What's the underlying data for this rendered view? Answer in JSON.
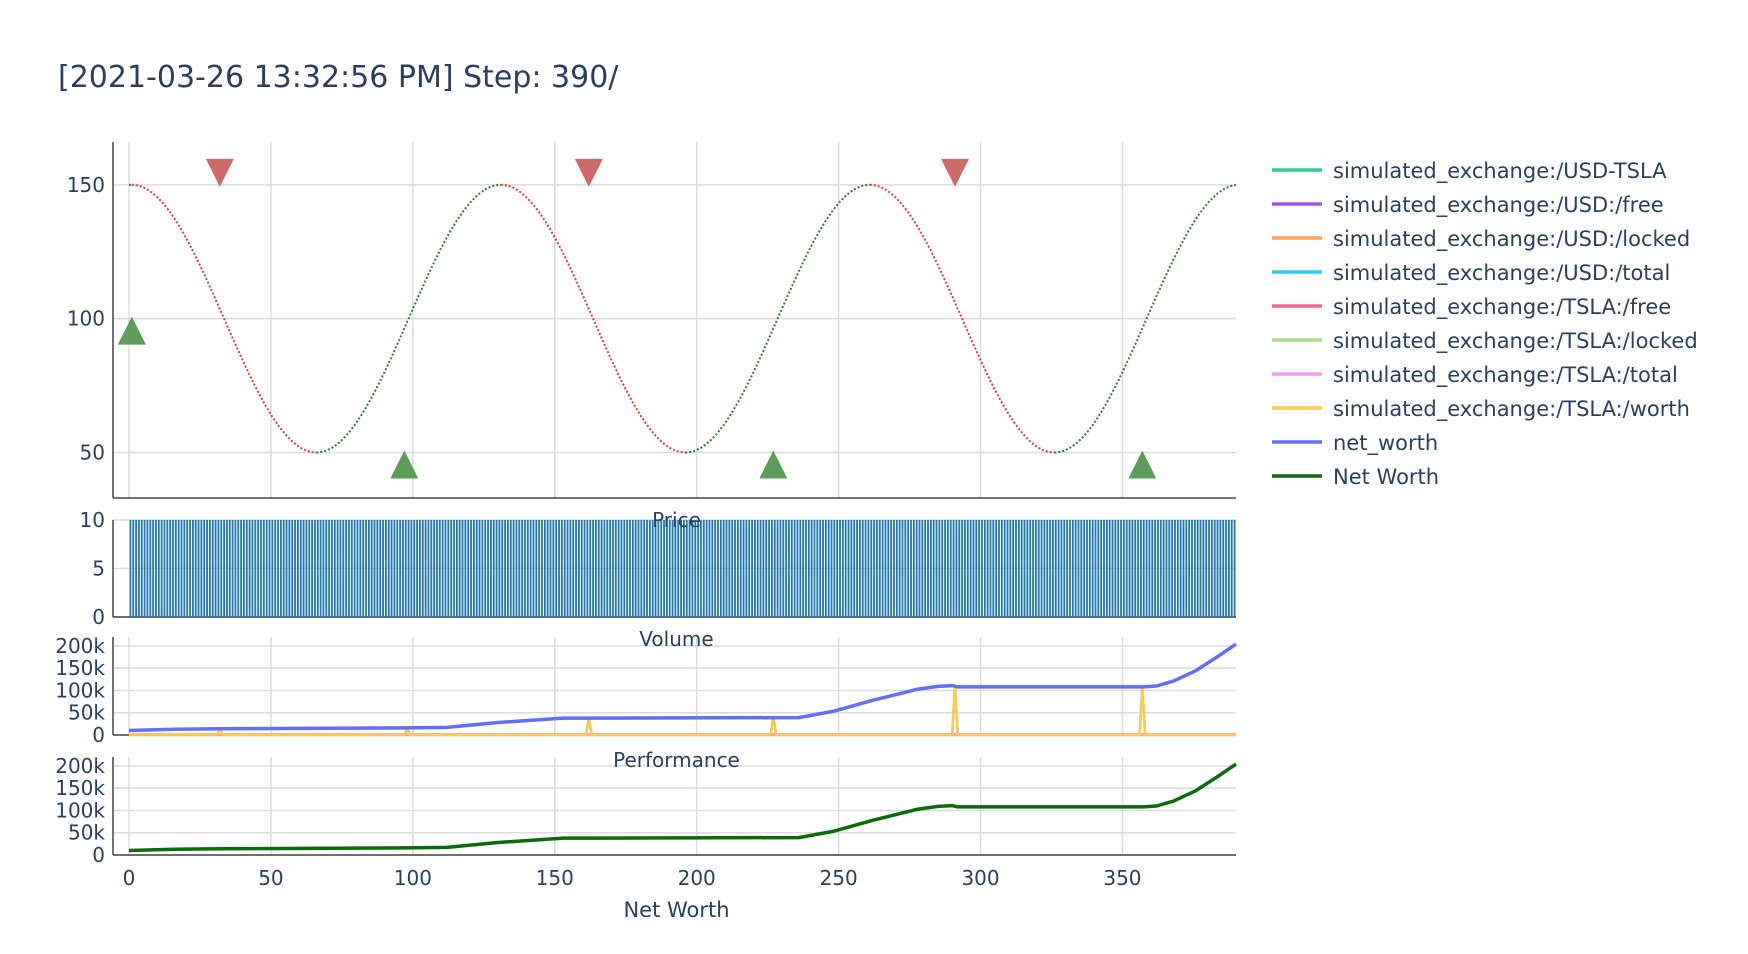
{
  "title": "[2021-03-26 13:32:56 PM] Step: 390/",
  "chart_data": [
    {
      "type": "line",
      "panel": "price",
      "title": "",
      "description": "Price as a sine wave; dotted segments colored green when rising and red when falling",
      "x_range": [
        0,
        390
      ],
      "ylim": [
        33,
        166
      ],
      "y_ticks": [
        50,
        100,
        150
      ],
      "sine": {
        "center": 100,
        "amplitude": 50,
        "period": 130,
        "phase_step": 0,
        "sample_step": 1
      },
      "colors": {
        "rising": "#2e7d32",
        "falling": "#e53935"
      },
      "buy_markers": {
        "x": [
          1,
          97,
          227,
          357
        ],
        "y": [
          100,
          50,
          50,
          50
        ],
        "color": "#5d9d5a",
        "symbol": "triangle-up"
      },
      "sell_markers": {
        "x": [
          32,
          162,
          291
        ],
        "y": [
          150,
          150,
          150
        ],
        "color": "#cf6a6a",
        "symbol": "triangle-down"
      }
    },
    {
      "type": "bar",
      "panel": "volume",
      "title": "Price",
      "x_range": [
        0,
        390
      ],
      "ylim": [
        0,
        10
      ],
      "y_ticks": [
        0,
        5,
        10
      ],
      "bar_value": 10,
      "bar_count": 390,
      "color": "#1f77b4"
    },
    {
      "type": "line",
      "panel": "portfolio",
      "title": "Volume",
      "ylim": [
        0,
        220000
      ],
      "y_ticks": [
        0,
        50000,
        100000,
        150000,
        200000
      ],
      "y_tick_labels": [
        "0",
        "50k",
        "100k",
        "150k",
        "200k"
      ],
      "series": [
        {
          "name": "simulated_exchange:/USD-TSLA",
          "color": "#2ecc9a",
          "x": [],
          "y": []
        },
        {
          "name": "simulated_exchange:/USD:/free",
          "color": "#9b5de5",
          "x": [],
          "y": []
        },
        {
          "name": "simulated_exchange:/USD:/locked",
          "color": "#ff9f5a",
          "x": [
            0,
            390
          ],
          "y": [
            0,
            0
          ]
        },
        {
          "name": "simulated_exchange:/USD:/total",
          "color": "#22cfe6",
          "x": [
            0,
            31,
            32,
            33,
            97,
            98,
            99,
            161,
            162,
            163,
            226,
            227,
            228,
            290,
            291,
            292,
            356,
            357,
            358,
            390
          ],
          "y": [
            1500,
            1500,
            14000,
            500,
            500,
            14000,
            500,
            500,
            38000,
            500,
            500,
            40000,
            500,
            500,
            110000,
            500,
            500,
            105000,
            500,
            500
          ]
        },
        {
          "name": "simulated_exchange:/TSLA:/free",
          "color": "#f06b8a",
          "x": [],
          "y": []
        },
        {
          "name": "simulated_exchange:/TSLA:/locked",
          "color": "#a8e08a",
          "x": [],
          "y": []
        },
        {
          "name": "simulated_exchange:/TSLA:/total",
          "color": "#f49cf2",
          "x": [
            0,
            390
          ],
          "y": [
            1500,
            1500
          ]
        },
        {
          "name": "simulated_exchange:/TSLA:/worth",
          "color": "#ffc94a",
          "x": [
            0,
            31,
            32,
            33,
            97,
            98,
            99,
            161,
            162,
            163,
            226,
            227,
            228,
            290,
            291,
            292,
            356,
            357,
            358,
            390
          ],
          "y": [
            1000,
            1000,
            14000,
            500,
            500,
            14000,
            500,
            500,
            38000,
            500,
            500,
            40000,
            500,
            500,
            110000,
            500,
            500,
            105000,
            500,
            500
          ]
        },
        {
          "name": "net_worth",
          "color": "#636efa",
          "x": [
            0,
            16,
            33,
            97,
            112,
            130,
            153,
            163,
            236,
            248,
            262,
            278,
            285,
            290,
            292,
            357,
            362,
            368,
            376,
            384,
            390
          ],
          "y": [
            10000,
            13000,
            14000,
            16000,
            17000,
            28000,
            38000,
            38000,
            39000,
            53000,
            78000,
            103000,
            109000,
            111000,
            108000,
            108000,
            110000,
            121000,
            145000,
            178000,
            204000
          ]
        }
      ]
    },
    {
      "type": "line",
      "panel": "net_worth",
      "title": "Performance",
      "xlabel": "Net Worth",
      "ylim": [
        0,
        220000
      ],
      "y_ticks": [
        0,
        50000,
        100000,
        150000,
        200000
      ],
      "y_tick_labels": [
        "0",
        "50k",
        "100k",
        "150k",
        "200k"
      ],
      "x_ticks": [
        0,
        50,
        100,
        150,
        200,
        250,
        300,
        350
      ],
      "series": [
        {
          "name": "Net Worth",
          "color": "#0a6b0a",
          "x": [
            0,
            16,
            33,
            97,
            112,
            130,
            153,
            163,
            236,
            248,
            262,
            278,
            285,
            290,
            292,
            357,
            362,
            368,
            376,
            384,
            390
          ],
          "y": [
            10000,
            13000,
            14000,
            16000,
            17000,
            28000,
            38000,
            38000,
            39000,
            53000,
            78000,
            103000,
            109000,
            111000,
            108000,
            108000,
            110000,
            121000,
            145000,
            178000,
            204000
          ]
        }
      ]
    }
  ],
  "legend": {
    "placement": "right",
    "items": [
      {
        "label": "simulated_exchange:/USD-TSLA",
        "color": "#2ecc9a"
      },
      {
        "label": "simulated_exchange:/USD:/free",
        "color": "#9b5de5"
      },
      {
        "label": "simulated_exchange:/USD:/locked",
        "color": "#ff9f5a"
      },
      {
        "label": "simulated_exchange:/USD:/total",
        "color": "#22cfe6"
      },
      {
        "label": "simulated_exchange:/TSLA:/free",
        "color": "#f06b8a"
      },
      {
        "label": "simulated_exchange:/TSLA:/locked",
        "color": "#a8e08a"
      },
      {
        "label": "simulated_exchange:/TSLA:/total",
        "color": "#f49cf2"
      },
      {
        "label": "simulated_exchange:/TSLA:/worth",
        "color": "#ffc94a"
      },
      {
        "label": "net_worth",
        "color": "#636efa"
      },
      {
        "label": "Net Worth",
        "color": "#0a6b0a"
      }
    ]
  },
  "grid": true
}
